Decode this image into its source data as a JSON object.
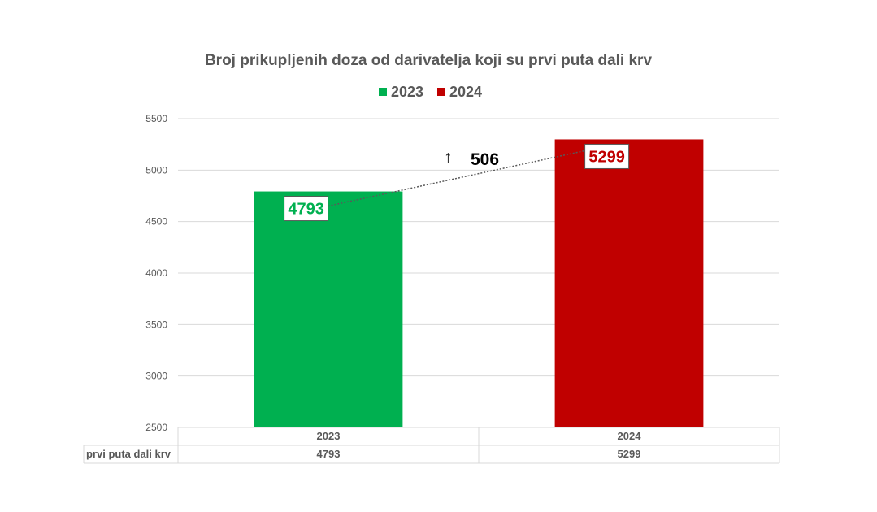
{
  "chart_data": {
    "type": "bar",
    "title": "Broj prikupljenih doza od darivatelja koji su prvi puta dali krv",
    "categories": [
      "2023",
      "2024"
    ],
    "series": [
      {
        "name": "prvi puta dali krv",
        "values": [
          4793,
          5299
        ]
      }
    ],
    "bar_colors": [
      "#00b050",
      "#c00000"
    ],
    "legend": {
      "placement": "top",
      "entries": [
        {
          "label": "2023",
          "color": "#00b050"
        },
        {
          "label": "2024",
          "color": "#c00000"
        }
      ]
    },
    "ylim": [
      2500,
      5500
    ],
    "yticks": [
      "2500",
      "3000",
      "3500",
      "4000",
      "4500",
      "5000",
      "5500"
    ],
    "grid": true,
    "data_labels": [
      "4793",
      "5299"
    ],
    "annotation": {
      "arrow": "↑",
      "text": "506"
    },
    "data_table": {
      "header": [
        "2023",
        "2024"
      ],
      "row_label": "prvi puta dali krv",
      "row_values": [
        "4793",
        "5299"
      ]
    }
  }
}
